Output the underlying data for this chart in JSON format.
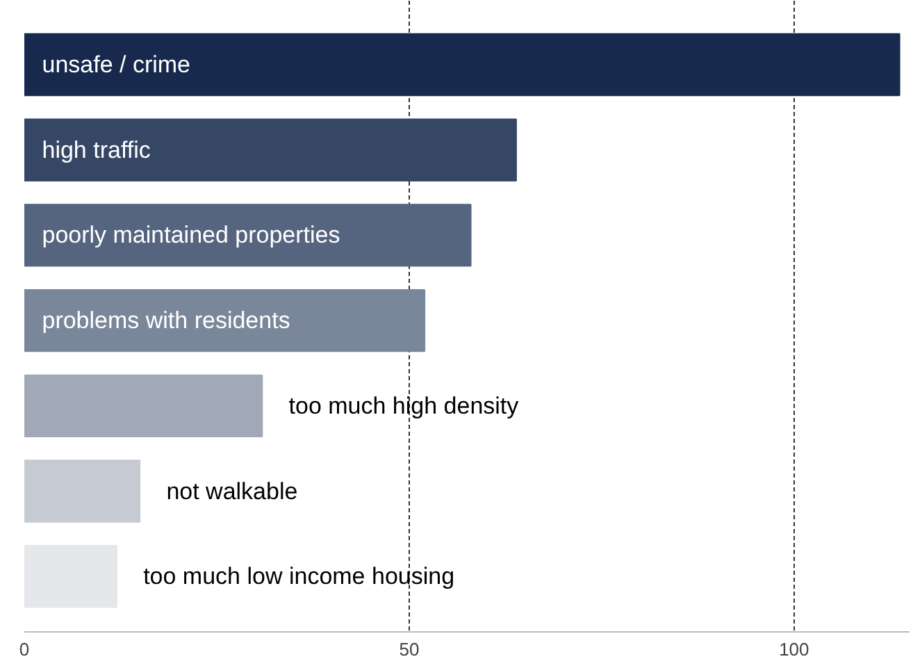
{
  "chart_data": {
    "type": "bar",
    "orientation": "horizontal",
    "categories": [
      "unsafe / crime",
      "high traffic",
      "poorly maintained properties",
      "problems with residents",
      "too much high density",
      "not walkable",
      "too much low income housing"
    ],
    "values": [
      113.7,
      63.9,
      58.0,
      52.0,
      30.9,
      15.0,
      12.0
    ],
    "colors": [
      "#172a4d",
      "#364766",
      "#56657f",
      "#7a879a",
      "#a2a9b6",
      "#c5cad3",
      "#e6e7ea"
    ],
    "xlim": [
      0,
      115
    ],
    "xticks": [
      0,
      50,
      100
    ],
    "grid": "x"
  }
}
